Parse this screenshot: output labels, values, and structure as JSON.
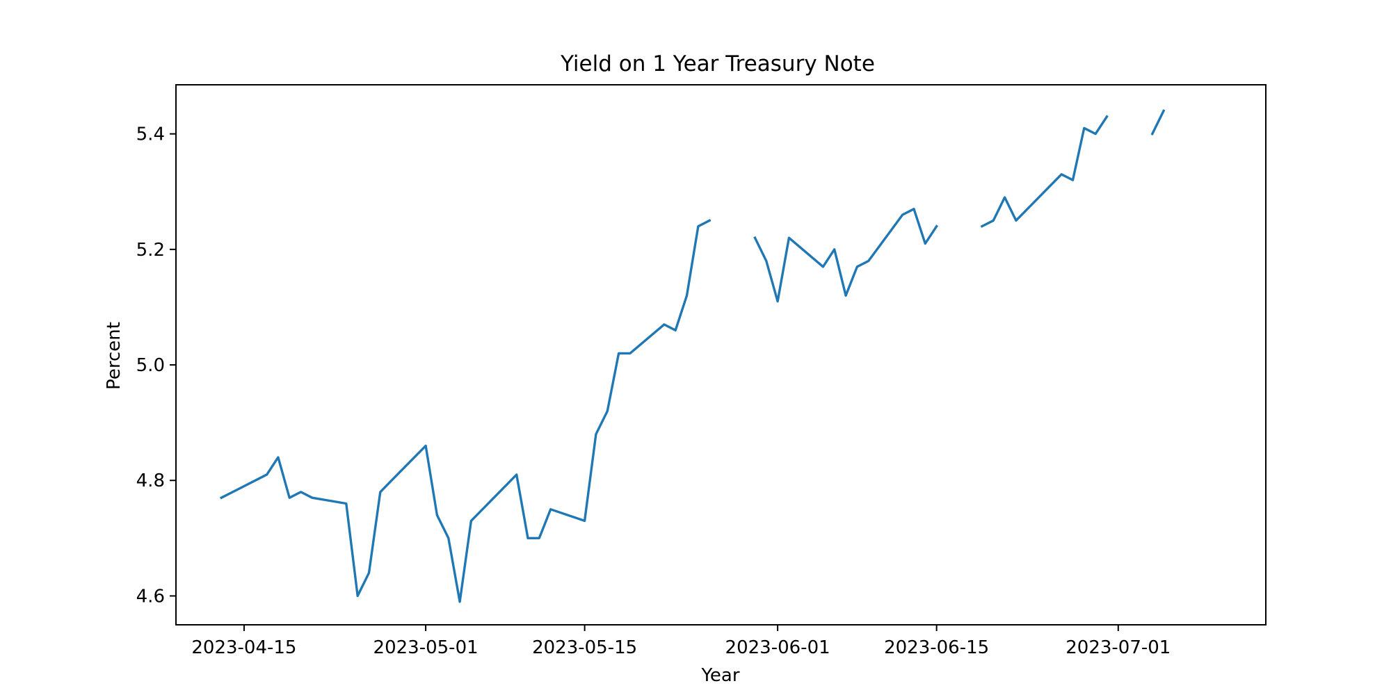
{
  "chart_data": {
    "type": "line",
    "title": "Yield on 1 Year Treasury Note",
    "xlabel": "Year",
    "ylabel": "Percent",
    "xlim": [
      "2023-04-09",
      "2023-07-14"
    ],
    "ylim": [
      4.55,
      5.485
    ],
    "x_ticks": [
      "2023-04-15",
      "2023-05-01",
      "2023-05-15",
      "2023-06-01",
      "2023-06-15",
      "2023-07-01"
    ],
    "y_ticks": [
      4.6,
      4.8,
      5.0,
      5.2,
      5.4
    ],
    "y_tick_labels": [
      "4.6",
      "4.8",
      "5.0",
      "5.2",
      "5.4"
    ],
    "grid": false,
    "legend": "none",
    "colors": {
      "line": "#1f77b4"
    },
    "series": [
      {
        "x": [
          "2023-04-13",
          "2023-04-14",
          "2023-04-17",
          "2023-04-18",
          "2023-04-19",
          "2023-04-20",
          "2023-04-21",
          "2023-04-24",
          "2023-04-25",
          "2023-04-26",
          "2023-04-27",
          "2023-04-28",
          "2023-05-01",
          "2023-05-02",
          "2023-05-03",
          "2023-05-04",
          "2023-05-05",
          "2023-05-08",
          "2023-05-09",
          "2023-05-10",
          "2023-05-11",
          "2023-05-12",
          "2023-05-15",
          "2023-05-16",
          "2023-05-17",
          "2023-05-18",
          "2023-05-19",
          "2023-05-22",
          "2023-05-23",
          "2023-05-24",
          "2023-05-25",
          "2023-05-26",
          "2023-05-29",
          "2023-05-30",
          "2023-05-31",
          "2023-06-01",
          "2023-06-02",
          "2023-06-05",
          "2023-06-06",
          "2023-06-07",
          "2023-06-08",
          "2023-06-09",
          "2023-06-12",
          "2023-06-13",
          "2023-06-14",
          "2023-06-15",
          "2023-06-16",
          "2023-06-19",
          "2023-06-20",
          "2023-06-21",
          "2023-06-22",
          "2023-06-23",
          "2023-06-26",
          "2023-06-27",
          "2023-06-28",
          "2023-06-29",
          "2023-06-30",
          "2023-07-03",
          "2023-07-04",
          "2023-07-05",
          "2023-07-06"
        ],
        "values": [
          4.77,
          4.78,
          4.81,
          4.84,
          4.77,
          4.78,
          4.77,
          4.76,
          4.6,
          4.64,
          4.78,
          4.8,
          4.86,
          4.74,
          4.7,
          4.59,
          4.73,
          4.79,
          4.81,
          4.7,
          4.7,
          4.75,
          4.73,
          4.88,
          4.92,
          5.02,
          5.02,
          5.07,
          5.06,
          5.12,
          5.24,
          5.25,
          null,
          5.22,
          5.18,
          5.11,
          5.22,
          5.17,
          5.2,
          5.12,
          5.17,
          5.18,
          5.26,
          5.27,
          5.21,
          5.24,
          null,
          5.24,
          5.25,
          5.29,
          5.25,
          5.27,
          5.33,
          5.32,
          5.41,
          5.4,
          5.43,
          null,
          5.4,
          5.44,
          null
        ]
      }
    ]
  }
}
